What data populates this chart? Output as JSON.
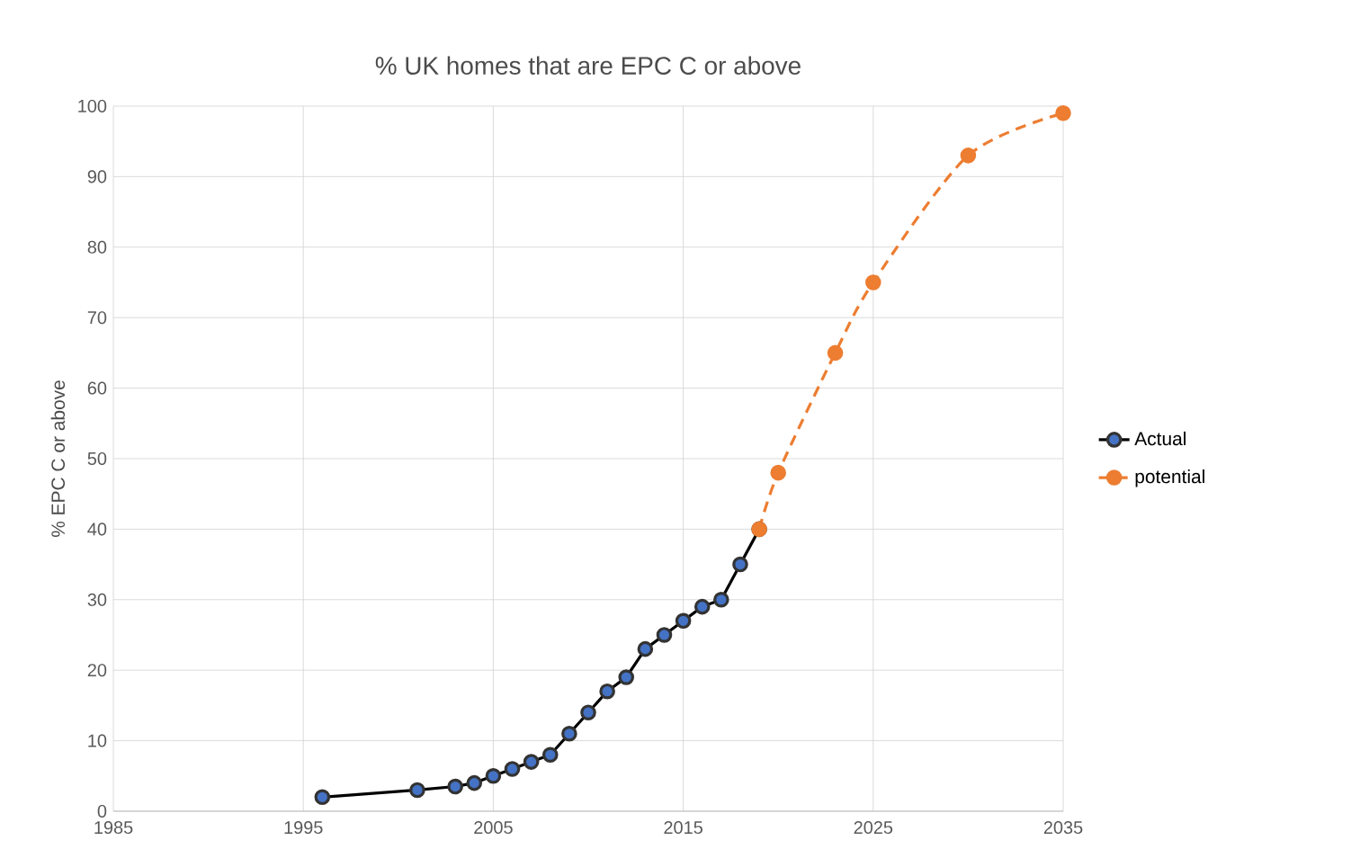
{
  "chart_data": {
    "type": "line",
    "title": "% UK homes that are EPC C or above",
    "ylabel": "% EPC C or above",
    "xlim": [
      1985,
      2035
    ],
    "xticks": [
      1985,
      1995,
      2005,
      2015,
      2025,
      2035
    ],
    "ylim": [
      0,
      100
    ],
    "yticks": [
      0,
      10,
      20,
      30,
      40,
      50,
      60,
      70,
      80,
      90,
      100
    ],
    "grid": true,
    "legend": "right",
    "marker": "circle",
    "series": [
      {
        "name": "Actual",
        "color": "#4472c4",
        "line_style": "solid",
        "x": [
          1996,
          2001,
          2003,
          2004,
          2005,
          2006,
          2007,
          2008,
          2009,
          2010,
          2011,
          2012,
          2013,
          2014,
          2015,
          2016,
          2017,
          2018,
          2019
        ],
        "values": [
          2,
          3,
          3.5,
          4,
          5,
          6,
          7,
          8,
          11,
          14,
          17,
          19,
          23,
          25,
          27,
          29,
          30,
          35,
          40
        ]
      },
      {
        "name": "potential",
        "color": "#ed7d31",
        "line_style": "dashed",
        "x": [
          2019,
          2020,
          2023,
          2025,
          2030,
          2035
        ],
        "values": [
          40,
          48,
          65,
          75,
          93,
          99
        ]
      }
    ]
  }
}
